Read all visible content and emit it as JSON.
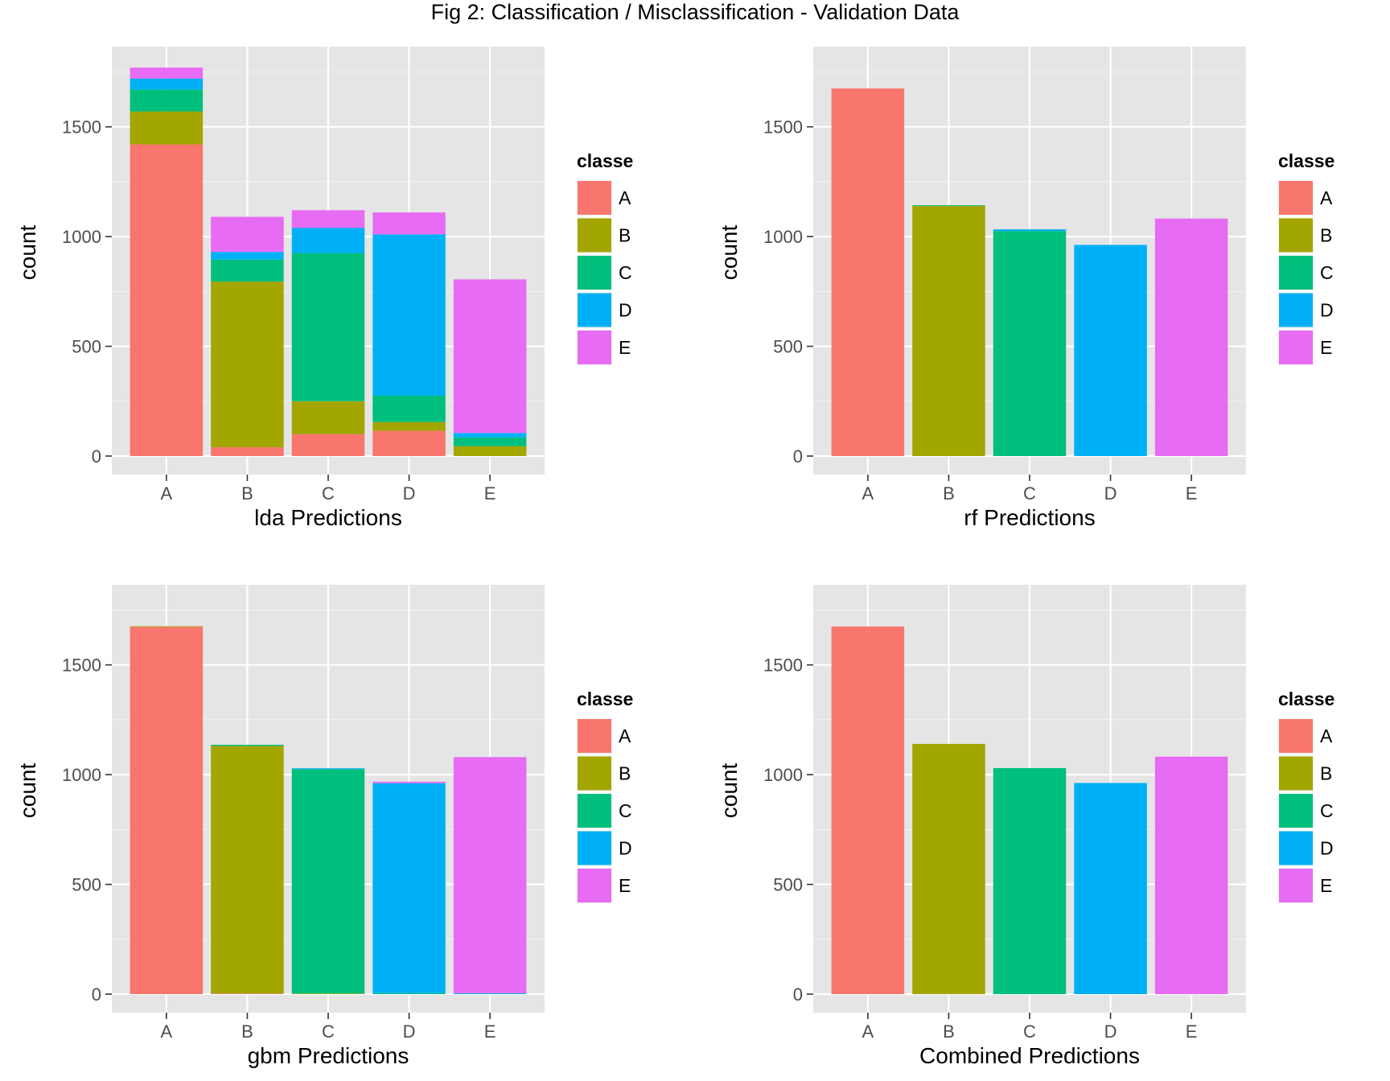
{
  "figure": {
    "title": "Fig 2: Classification / Misclassification - Validation Data"
  },
  "colors": {
    "A": "#F8766D",
    "B": "#A3A500",
    "C": "#00BF7D",
    "D": "#00B0F6",
    "E": "#E76BF3",
    "panel_bg": "#E5E5E5",
    "grid": "#FFFFFF",
    "tick_text": "#4D4D4D"
  },
  "chart_data": [
    {
      "type": "bar",
      "stacked": true,
      "categories": [
        "A",
        "B",
        "C",
        "D",
        "E"
      ],
      "xlabel": "lda Predictions",
      "ylabel": "count",
      "ylim": [
        0,
        1770
      ],
      "yticks": [
        "0",
        "500",
        "1000",
        "1500"
      ],
      "legend": {
        "title": "classe",
        "entries": [
          "A",
          "B",
          "C",
          "D",
          "E"
        ],
        "position": "right"
      },
      "grid": true,
      "series": [
        {
          "name": "A",
          "values": [
            1420,
            40,
            100,
            115,
            0
          ]
        },
        {
          "name": "B",
          "values": [
            150,
            755,
            150,
            40,
            45
          ]
        },
        {
          "name": "C",
          "values": [
            100,
            100,
            675,
            120,
            40
          ]
        },
        {
          "name": "D",
          "values": [
            50,
            35,
            115,
            735,
            20
          ]
        },
        {
          "name": "E",
          "values": [
            50,
            160,
            80,
            100,
            700
          ]
        }
      ]
    },
    {
      "type": "bar",
      "stacked": true,
      "categories": [
        "A",
        "B",
        "C",
        "D",
        "E"
      ],
      "xlabel": "rf Predictions",
      "ylabel": "count",
      "ylim": [
        0,
        1770
      ],
      "yticks": [
        "0",
        "500",
        "1000",
        "1500"
      ],
      "legend": {
        "title": "classe",
        "entries": [
          "A",
          "B",
          "C",
          "D",
          "E"
        ],
        "position": "right"
      },
      "grid": true,
      "series": [
        {
          "name": "A",
          "values": [
            1675,
            0,
            0,
            0,
            0
          ]
        },
        {
          "name": "B",
          "values": [
            0,
            1140,
            0,
            0,
            0
          ]
        },
        {
          "name": "C",
          "values": [
            0,
            3,
            1025,
            0,
            0
          ]
        },
        {
          "name": "D",
          "values": [
            0,
            0,
            8,
            962,
            0
          ]
        },
        {
          "name": "E",
          "values": [
            0,
            0,
            0,
            0,
            1082
          ]
        }
      ]
    },
    {
      "type": "bar",
      "stacked": true,
      "categories": [
        "A",
        "B",
        "C",
        "D",
        "E"
      ],
      "xlabel": "gbm Predictions",
      "ylabel": "count",
      "ylim": [
        0,
        1770
      ],
      "yticks": [
        "0",
        "500",
        "1000",
        "1500"
      ],
      "legend": {
        "title": "classe",
        "entries": [
          "A",
          "B",
          "C",
          "D",
          "E"
        ],
        "position": "right"
      },
      "grid": true,
      "series": [
        {
          "name": "A",
          "values": [
            1673,
            3,
            0,
            0,
            0
          ]
        },
        {
          "name": "B",
          "values": [
            3,
            1128,
            3,
            0,
            0
          ]
        },
        {
          "name": "C",
          "values": [
            0,
            5,
            1022,
            5,
            0
          ]
        },
        {
          "name": "D",
          "values": [
            0,
            0,
            4,
            956,
            4
          ]
        },
        {
          "name": "E",
          "values": [
            0,
            0,
            0,
            7,
            1076
          ]
        }
      ]
    },
    {
      "type": "bar",
      "stacked": true,
      "categories": [
        "A",
        "B",
        "C",
        "D",
        "E"
      ],
      "xlabel": "Combined Predictions",
      "ylabel": "count",
      "ylim": [
        0,
        1770
      ],
      "yticks": [
        "0",
        "500",
        "1000",
        "1500"
      ],
      "legend": {
        "title": "classe",
        "entries": [
          "A",
          "B",
          "C",
          "D",
          "E"
        ],
        "position": "right"
      },
      "grid": true,
      "series": [
        {
          "name": "A",
          "values": [
            1675,
            0,
            0,
            0,
            0
          ]
        },
        {
          "name": "B",
          "values": [
            0,
            1140,
            0,
            0,
            0
          ]
        },
        {
          "name": "C",
          "values": [
            0,
            0,
            1030,
            0,
            0
          ]
        },
        {
          "name": "D",
          "values": [
            0,
            0,
            0,
            962,
            0
          ]
        },
        {
          "name": "E",
          "values": [
            0,
            0,
            0,
            0,
            1082
          ]
        }
      ]
    }
  ]
}
